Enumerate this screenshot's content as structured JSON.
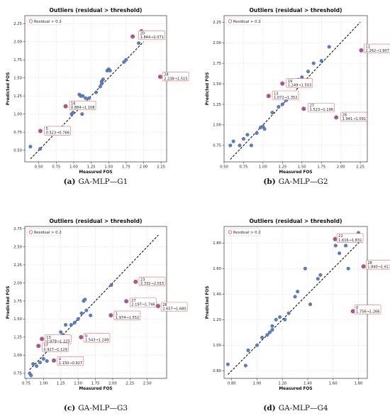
{
  "charts": [
    {
      "title": "Outliers (residual > threshold)",
      "legend": "Residual > 0.2",
      "xlabel": "Measured FOS",
      "ylabel": "Predicted FOS",
      "caption_letter": "(a)",
      "caption_text": "GA-MLP—G1",
      "xlim": [
        0.3,
        2.33
      ],
      "ylim": [
        0.34,
        2.36
      ],
      "xticks": [
        "0.50",
        "0.75",
        "1.00",
        "1.25",
        "1.50",
        "1.75",
        "2.00",
        "2.25"
      ],
      "yticks": [
        "0.50",
        "0.75",
        "1.00",
        "1.25",
        "1.50",
        "1.75",
        "2.00",
        "2.25"
      ],
      "diag": [
        0.38,
        2.0
      ],
      "points": [
        [
          0.38,
          0.55
        ],
        [
          0.52,
          0.52
        ],
        [
          0.97,
          1.0
        ],
        [
          0.99,
          1.02
        ],
        [
          1.02,
          1.08
        ],
        [
          1.08,
          1.27
        ],
        [
          1.1,
          1.25
        ],
        [
          1.12,
          1.0
        ],
        [
          1.13,
          1.25
        ],
        [
          1.17,
          1.22
        ],
        [
          1.22,
          1.22
        ],
        [
          1.32,
          1.3
        ],
        [
          1.38,
          1.38
        ],
        [
          1.4,
          1.45
        ],
        [
          1.4,
          1.42
        ],
        [
          1.42,
          1.48
        ],
        [
          1.48,
          1.6
        ],
        [
          1.5,
          1.62
        ],
        [
          1.52,
          1.6
        ],
        [
          1.72,
          1.72
        ],
        [
          1.75,
          1.75
        ],
        [
          1.93,
          1.98
        ],
        [
          1.97,
          2.15
        ]
      ],
      "outliers": [
        {
          "x": 1.844,
          "y": 2.071,
          "idx": "20",
          "label": "1.844→2.071",
          "lx": 1.93,
          "ly": 2.09
        },
        {
          "x": 2.238,
          "y": 1.515,
          "idx": "28",
          "label": "2.238→1.515",
          "lx": 2.27,
          "ly": 1.52
        },
        {
          "x": 0.884,
          "y": 1.108,
          "idx": "16",
          "label": "0.884→1.108",
          "lx": 0.94,
          "ly": 1.12
        },
        {
          "x": 0.523,
          "y": 0.766,
          "idx": "5",
          "label": "0.523→0.766",
          "lx": 0.58,
          "ly": 0.77
        }
      ]
    },
    {
      "title": "Outliers (residual > threshold)",
      "legend": "Residual > 0.2",
      "xlabel": "Measured FOS",
      "ylabel": "Predicted FOS",
      "caption_letter": "(b)",
      "caption_text": "GA-MLP—G2",
      "xlim": [
        0.5,
        2.34
      ],
      "ylim": [
        0.55,
        2.33
      ],
      "xticks": [
        "0.50",
        "0.75",
        "1.00",
        "1.25",
        "1.50",
        "1.75",
        "2.00",
        "2.25"
      ],
      "yticks": [
        "0.75",
        "1.00",
        "1.25",
        "1.50",
        "1.75",
        "2.00",
        "2.25"
      ],
      "diag": [
        0.58,
        2.25
      ],
      "points": [
        [
          0.58,
          0.75
        ],
        [
          0.62,
          0.8
        ],
        [
          0.7,
          0.75
        ],
        [
          0.75,
          0.83
        ],
        [
          0.8,
          0.88
        ],
        [
          0.85,
          0.75
        ],
        [
          0.92,
          0.9
        ],
        [
          0.97,
          0.97
        ],
        [
          1.0,
          0.98
        ],
        [
          1.02,
          0.95
        ],
        [
          1.12,
          1.15
        ],
        [
          1.2,
          1.22
        ],
        [
          1.25,
          1.25
        ],
        [
          1.28,
          1.32
        ],
        [
          1.3,
          1.3
        ],
        [
          1.42,
          1.48
        ],
        [
          1.45,
          1.55
        ],
        [
          1.5,
          1.58
        ],
        [
          1.58,
          1.65
        ],
        [
          1.65,
          1.75
        ],
        [
          1.75,
          1.78
        ],
        [
          1.85,
          1.95
        ]
      ],
      "outliers": [
        {
          "x": 2.262,
          "y": 1.907,
          "idx": "11",
          "label": "2.262→1.907",
          "lx": 2.3,
          "ly": 1.93
        },
        {
          "x": 1.249,
          "y": 1.503,
          "idx": "19",
          "label": "1.249→1.503",
          "lx": 1.3,
          "ly": 1.51
        },
        {
          "x": 1.072,
          "y": 1.352,
          "idx": "13",
          "label": "1.072→1.352",
          "lx": 1.12,
          "ly": 1.36
        },
        {
          "x": 1.523,
          "y": 1.196,
          "idx": "27",
          "label": "1.523→1.196",
          "lx": 1.58,
          "ly": 1.21
        },
        {
          "x": 1.941,
          "y": 1.091,
          "idx": "28",
          "label": "1.941→1.091",
          "lx": 2.0,
          "ly": 1.1
        }
      ]
    },
    {
      "title": "Outliers (residual > threshold)",
      "legend": "Residual > 0.2",
      "xlabel": "Measured FOS",
      "ylabel": "Predicted FOS",
      "caption_letter": "(c)",
      "caption_text": "GA-MLP—G3",
      "xlim": [
        0.73,
        2.78
      ],
      "ylim": [
        0.68,
        2.78
      ],
      "xticks": [
        "0.75",
        "1.00",
        "1.25",
        "1.50",
        "1.75",
        "2.00",
        "2.25",
        "2.50"
      ],
      "yticks": [
        "0.75",
        "1.00",
        "1.25",
        "1.50",
        "1.75",
        "2.00",
        "2.25",
        "2.50",
        "2.75"
      ],
      "diag": [
        0.8,
        2.66
      ],
      "points": [
        [
          0.8,
          0.75
        ],
        [
          0.82,
          0.72
        ],
        [
          0.85,
          0.88
        ],
        [
          0.9,
          0.85
        ],
        [
          0.95,
          0.9
        ],
        [
          1.0,
          0.95
        ],
        [
          1.05,
          0.92
        ],
        [
          1.1,
          1.08
        ],
        [
          1.15,
          1.18
        ],
        [
          1.2,
          1.2
        ],
        [
          1.25,
          1.32
        ],
        [
          1.28,
          1.28
        ],
        [
          1.32,
          1.42
        ],
        [
          1.4,
          1.42
        ],
        [
          1.45,
          1.45
        ],
        [
          1.5,
          1.5
        ],
        [
          1.55,
          1.58
        ],
        [
          1.58,
          1.75
        ],
        [
          1.6,
          1.77
        ],
        [
          1.62,
          1.62
        ],
        [
          1.68,
          1.55
        ],
        [
          1.98,
          1.97
        ]
      ],
      "outliers": [
        {
          "x": 2.332,
          "y": 2.015,
          "idx": "23",
          "label": "2.332→2.015",
          "lx": 2.38,
          "ly": 2.02
        },
        {
          "x": 2.197,
          "y": 1.746,
          "idx": "27",
          "label": "2.197→1.746",
          "lx": 2.25,
          "ly": 1.73
        },
        {
          "x": 2.657,
          "y": 1.68,
          "idx": "28",
          "label": "2.657→1.680",
          "lx": 2.7,
          "ly": 1.67
        },
        {
          "x": 1.974,
          "y": 1.552,
          "idx": "1",
          "label": "1.974→1.552",
          "lx": 2.02,
          "ly": 1.55
        },
        {
          "x": 1.543,
          "y": 1.249,
          "idx": "9",
          "label": "1.543→1.249",
          "lx": 1.58,
          "ly": 1.24
        },
        {
          "x": 0.978,
          "y": 1.225,
          "idx": "13",
          "label": "0.978→1.225",
          "lx": 1.02,
          "ly": 1.22
        },
        {
          "x": 0.927,
          "y": 1.129,
          "idx": "17",
          "label": "0.927→1.129",
          "lx": 0.98,
          "ly": 1.11
        },
        {
          "x": 1.15,
          "y": 0.927,
          "idx": "4",
          "label": "1.150→0.927",
          "lx": 1.2,
          "ly": 0.92
        }
      ]
    },
    {
      "title": "Outliers (residual > threshold)",
      "legend": "Residual > 0.2",
      "xlabel": "Measured FOS",
      "ylabel": "Predicted FOS",
      "caption_letter": "(d)",
      "caption_text": "GA-MLP—G4",
      "xlim": [
        0.74,
        1.87
      ],
      "ylim": [
        0.74,
        1.93
      ],
      "xticks": [
        "0.80",
        "1.00",
        "1.20",
        "1.40",
        "1.60",
        "1.80"
      ],
      "yticks": [
        "0.80",
        "1.00",
        "1.20",
        "1.40",
        "1.60",
        "1.80"
      ],
      "diag": [
        0.77,
        1.82
      ],
      "points": [
        [
          0.77,
          0.85
        ],
        [
          0.91,
          0.84
        ],
        [
          0.93,
          0.96
        ],
        [
          1.0,
          1.0
        ],
        [
          1.04,
          1.06
        ],
        [
          1.08,
          1.08
        ],
        [
          1.1,
          1.1
        ],
        [
          1.12,
          1.12
        ],
        [
          1.12,
          1.15
        ],
        [
          1.15,
          1.2
        ],
        [
          1.18,
          1.22
        ],
        [
          1.22,
          1.2
        ],
        [
          1.25,
          1.25
        ],
        [
          1.3,
          1.38
        ],
        [
          1.32,
          1.42
        ],
        [
          1.38,
          1.6
        ],
        [
          1.42,
          1.32
        ],
        [
          1.48,
          1.52
        ],
        [
          1.5,
          1.55
        ],
        [
          1.62,
          1.78
        ],
        [
          1.65,
          1.72
        ],
        [
          1.7,
          1.78
        ],
        [
          1.72,
          1.6
        ],
        [
          1.8,
          1.88
        ]
      ],
      "outliers": [
        {
          "x": 1.616,
          "y": 1.831,
          "idx": "22",
          "label": "1.616→1.831",
          "lx": 1.63,
          "ly": 1.84
        },
        {
          "x": 1.84,
          "y": 1.617,
          "idx": "28",
          "label": "1.840→1.617",
          "lx": 1.86,
          "ly": 1.63
        },
        {
          "x": 1.756,
          "y": 1.266,
          "idx": "0",
          "label": "1.756→1.266",
          "lx": 1.77,
          "ly": 1.28
        }
      ]
    }
  ]
}
